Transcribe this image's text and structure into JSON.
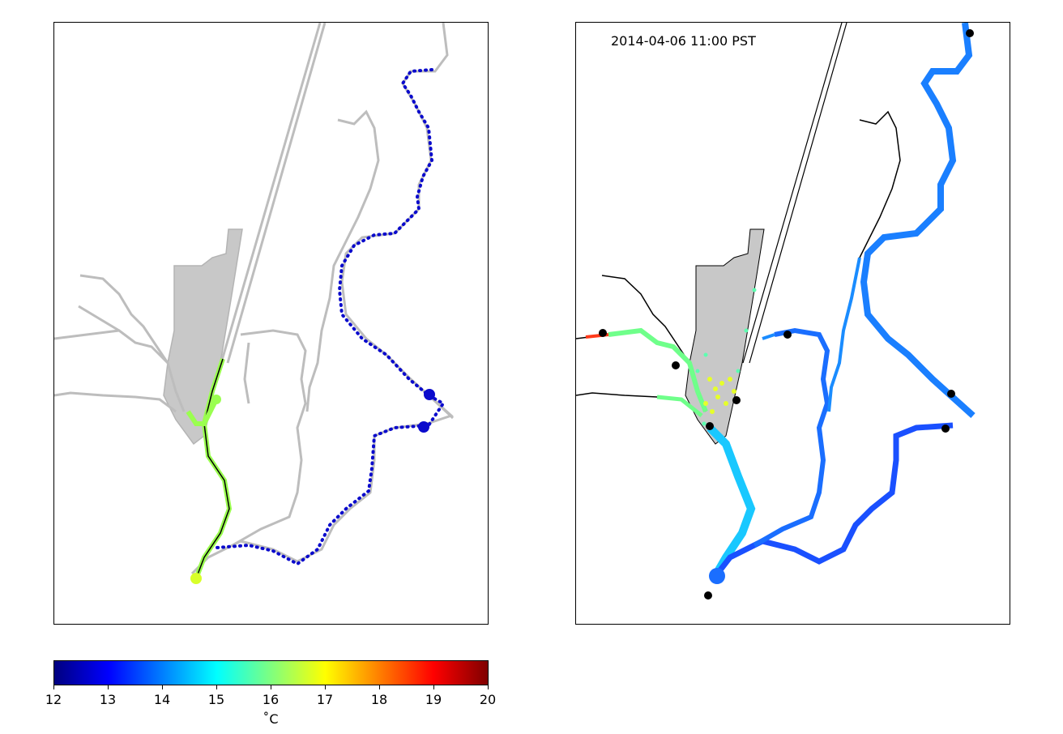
{
  "right_panel": {
    "timestamp": "2014-04-06 11:00 PST"
  },
  "colorbar": {
    "colormap": "jet",
    "min": 12,
    "max": 20,
    "ticks": [
      "12",
      "13",
      "14",
      "15",
      "16",
      "17",
      "18",
      "19",
      "20"
    ],
    "unit": "˚C",
    "stops": [
      "#00007f",
      "#0000ff",
      "#007fff",
      "#00ffff",
      "#7fff7f",
      "#ffff00",
      "#ff7f00",
      "#ff0000",
      "#7f0000"
    ]
  },
  "colors": {
    "land": "#c8c8c8",
    "channel_outline": "#b4b4b4",
    "track_blue": "#0a0acc",
    "track_green": "#9aff4f",
    "river_blue": "#1a6eff",
    "station": "#000000"
  }
}
